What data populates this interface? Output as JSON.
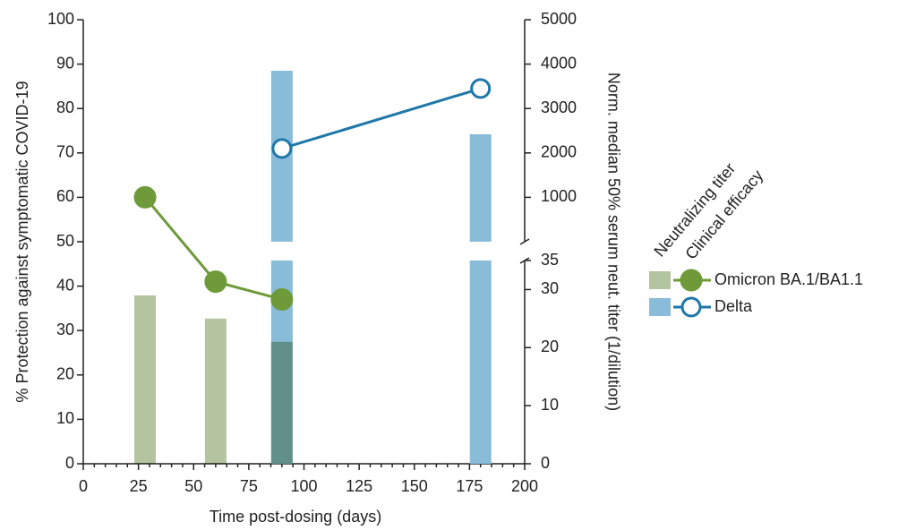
{
  "chart_data": {
    "type": "bar-line",
    "x_label": "Time post-dosing (days)",
    "y_label": "% Protection against symptomatic COVID-19",
    "y2_label": "Norm. median 50% serum neut. titer (1/dilution)",
    "legend_headers": [
      "Neutralizing titer",
      "Clinical efficacy"
    ],
    "xlim": [
      0,
      200
    ],
    "xticks": [
      0,
      25,
      50,
      75,
      100,
      125,
      150,
      175,
      200
    ],
    "ylim": [
      0,
      100
    ],
    "yticks": [
      0,
      10,
      20,
      30,
      40,
      50,
      60,
      70,
      80,
      90,
      100
    ],
    "y2_segments": [
      {
        "lim": [
          0,
          35
        ],
        "ticks": [
          0,
          10,
          20,
          30,
          35
        ]
      },
      {
        "lim": [
          0,
          5000
        ],
        "ticks": [
          1000,
          2000,
          3000,
          4000,
          5000
        ]
      }
    ],
    "series": [
      {
        "name": "Omicron BA.1/BA1.1",
        "bar_color": "#b5c4a0",
        "line_color": "#6e9a3a",
        "marker": "filled",
        "titer_x": [
          28,
          60,
          90
        ],
        "titer": [
          29,
          25,
          21
        ],
        "efficacy_x": [
          28,
          60,
          90
        ],
        "efficacy": [
          60,
          41,
          37
        ]
      },
      {
        "name": "Delta",
        "bar_color": "#89bcd9",
        "line_color": "#1f78a8",
        "marker": "open",
        "titer_x": [
          90,
          180
        ],
        "titer": [
          3850,
          2420
        ],
        "efficacy_x": [
          90,
          180
        ],
        "efficacy": [
          71,
          84.5
        ]
      }
    ]
  }
}
